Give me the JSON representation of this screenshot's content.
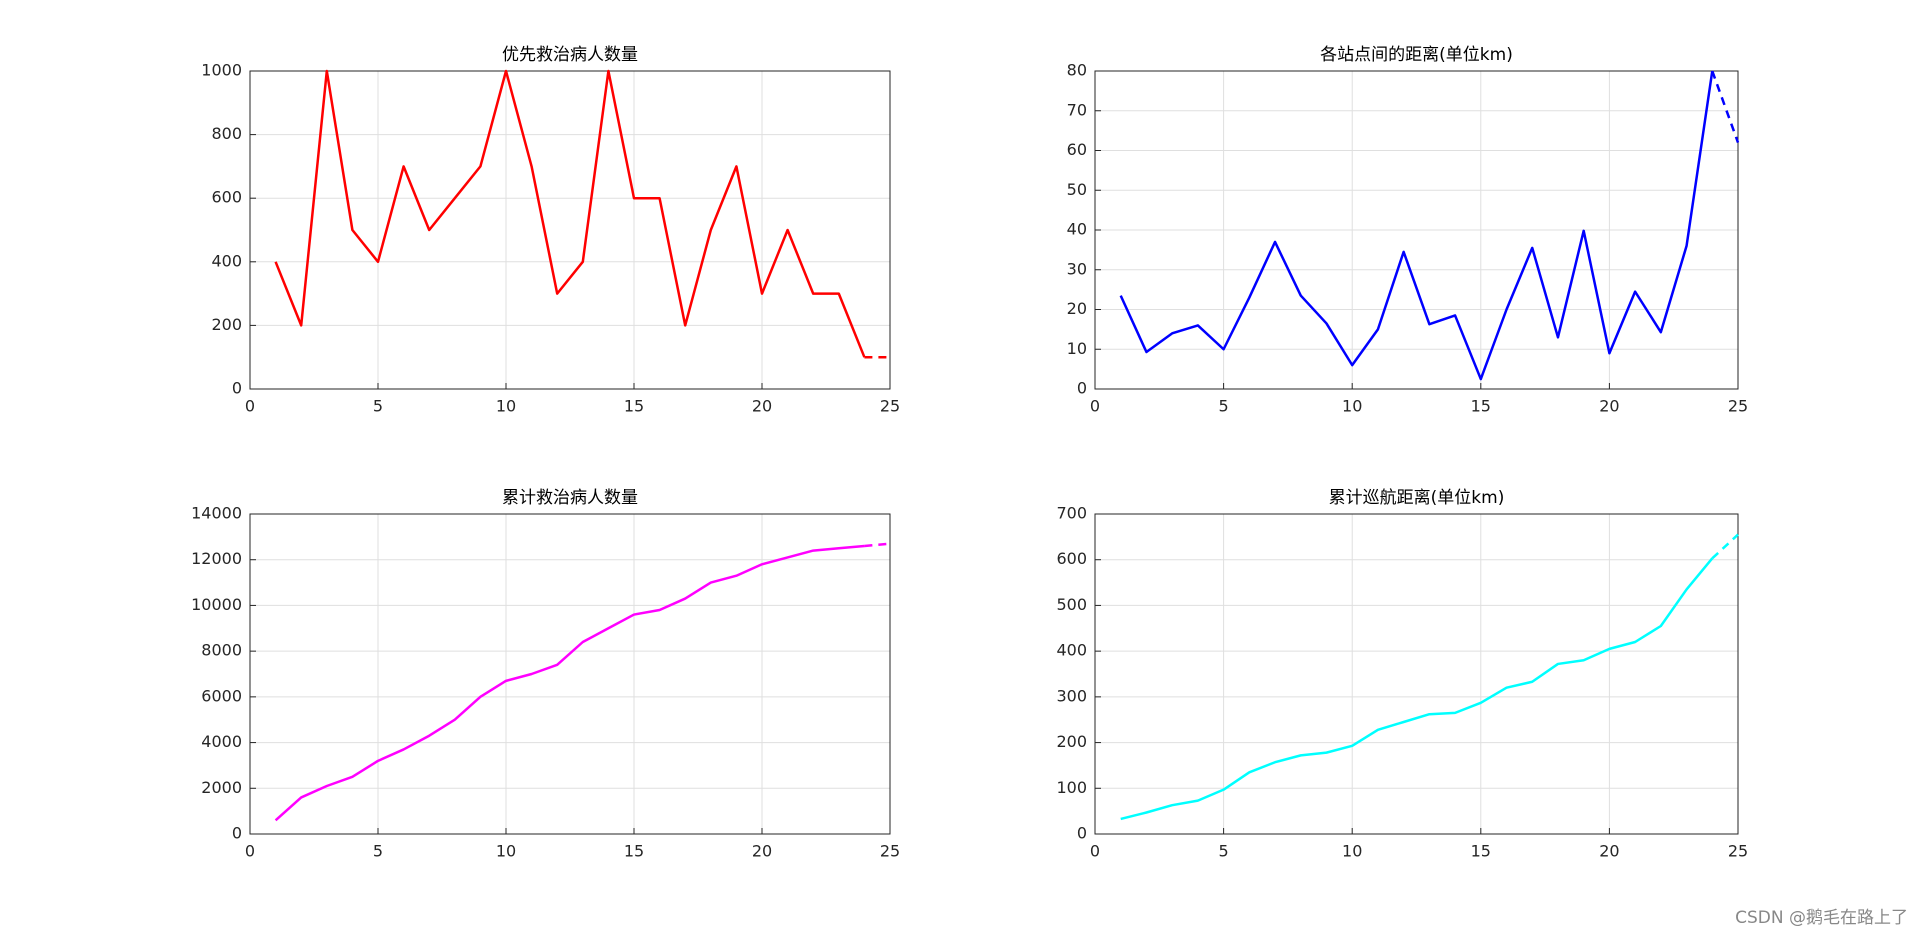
{
  "chart_data": [
    {
      "type": "line",
      "title": "优先救治病人数量",
      "color": "#ff0000",
      "last_segment_style": "dashed",
      "grid": true,
      "x": [
        1,
        2,
        3,
        4,
        5,
        6,
        7,
        8,
        9,
        10,
        11,
        12,
        13,
        14,
        15,
        16,
        17,
        18,
        19,
        20,
        21,
        22,
        23,
        24,
        25
      ],
      "values": [
        400,
        200,
        1000,
        500,
        400,
        700,
        500,
        600,
        700,
        1000,
        700,
        300,
        400,
        1000,
        600,
        600,
        200,
        500,
        700,
        300,
        500,
        300,
        300,
        100,
        100
      ],
      "xlim": [
        0,
        25
      ],
      "xticks": [
        0,
        5,
        10,
        15,
        20,
        25
      ],
      "ylim": [
        0,
        1000
      ],
      "yticks": [
        0,
        200,
        400,
        600,
        800,
        1000
      ]
    },
    {
      "type": "line",
      "title": "各站点间的距离(单位km)",
      "color": "#0000ff",
      "last_segment_style": "dashed",
      "grid": true,
      "x": [
        1,
        2,
        3,
        4,
        5,
        6,
        7,
        8,
        9,
        10,
        11,
        12,
        13,
        14,
        15,
        16,
        17,
        18,
        19,
        20,
        21,
        22,
        23,
        24,
        25
      ],
      "values": [
        23.5,
        9.3,
        14,
        16,
        10,
        23,
        37,
        23.5,
        16.5,
        6,
        15,
        34.5,
        16.3,
        18.5,
        2.5,
        20,
        35.5,
        13,
        39.8,
        9,
        24.5,
        14.3,
        36,
        80,
        62
      ],
      "xlim": [
        0,
        25
      ],
      "xticks": [
        0,
        5,
        10,
        15,
        20,
        25
      ],
      "ylim": [
        0,
        80
      ],
      "yticks": [
        0,
        10,
        20,
        30,
        40,
        50,
        60,
        70,
        80
      ]
    },
    {
      "type": "line",
      "title": "累计救治病人数量",
      "color": "#ff00ff",
      "last_segment_style": "dashed",
      "grid": true,
      "x": [
        1,
        2,
        3,
        4,
        5,
        6,
        7,
        8,
        9,
        10,
        11,
        12,
        13,
        14,
        15,
        16,
        17,
        18,
        19,
        20,
        21,
        22,
        23,
        24,
        25
      ],
      "values": [
        600,
        1600,
        2100,
        2500,
        3200,
        3700,
        4300,
        5000,
        6000,
        6700,
        7000,
        7400,
        8400,
        9000,
        9600,
        9800,
        10300,
        11000,
        11300,
        11800,
        12100,
        12400,
        12500,
        12600,
        12700
      ],
      "xlim": [
        0,
        25
      ],
      "xticks": [
        0,
        5,
        10,
        15,
        20,
        25
      ],
      "ylim": [
        0,
        14000
      ],
      "yticks": [
        0,
        2000,
        4000,
        6000,
        8000,
        10000,
        12000,
        14000
      ]
    },
    {
      "type": "line",
      "title": "累计巡航距离(单位km)",
      "color": "#00ffff",
      "last_segment_style": "dashed",
      "grid": true,
      "x": [
        1,
        2,
        3,
        4,
        5,
        6,
        7,
        8,
        9,
        10,
        11,
        12,
        13,
        14,
        15,
        16,
        17,
        18,
        19,
        20,
        21,
        22,
        23,
        24,
        25
      ],
      "values": [
        33,
        47,
        63,
        73,
        97,
        135,
        157,
        172,
        178,
        193,
        228,
        245,
        262,
        265,
        287,
        320,
        333,
        372,
        380,
        405,
        420,
        455,
        535,
        603,
        655
      ],
      "xlim": [
        0,
        25
      ],
      "xticks": [
        0,
        5,
        10,
        15,
        20,
        25
      ],
      "ylim": [
        0,
        700
      ],
      "yticks": [
        0,
        100,
        200,
        300,
        400,
        500,
        600,
        700
      ]
    }
  ],
  "watermark": "CSDN @鹅毛在路上了"
}
